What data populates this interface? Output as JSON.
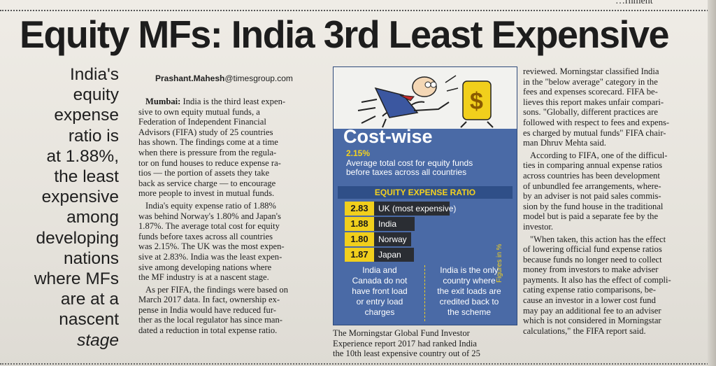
{
  "top_fragment": "…rnment",
  "headline": "Equity MFs: India 3rd Least Expensive",
  "pull_quote": [
    "India's",
    "equity",
    "expense",
    "ratio is",
    "at 1.88%,",
    "the least",
    "expensive",
    "among",
    "developing",
    "nations",
    "where MFs",
    "are at a",
    "nascent",
    "stage"
  ],
  "byline": {
    "name": "Prashant.Mahesh",
    "domain": "@timesgroup.com"
  },
  "column1": {
    "dateline": "Mumbai:",
    "paragraphs": [
      [
        "India is the third least expen-",
        "sive to own equity mutual funds, a",
        "Federation of Independent Financial",
        "Advisors (FIFA) study of 25 countries",
        "has shown. The findings come at a time",
        "when there is pressure from the regula-",
        "tor on fund houses to reduce expense ra-",
        "tios — the portion of assets they take",
        "back as service charge — to encourage",
        "more people to invest in mutual funds."
      ],
      [
        "India's equity expense ratio of 1.88%",
        "was behind Norway's 1.80% and Japan's",
        "1.87%. The average total cost for equity",
        "funds before taxes across all countries",
        "was 2.15%. The UK was the most expen-",
        "sive at 2.83%. India was the least expen-",
        "sive among developing nations where",
        "the MF industry is at a nascent stage."
      ],
      [
        "As per FIFA, the findings were based on",
        "March 2017 data. In fact, ownership ex-",
        "pense in India would have reduced fur-",
        "ther as the local regulator has since man-",
        "dated a reduction in total expense ratio."
      ]
    ]
  },
  "column2_text": [
    "The Morningstar Global Fund Investor",
    "Experience report 2017 had ranked India",
    "the 10th least expensive country out of 25"
  ],
  "column3": {
    "paragraphs": [
      [
        "reviewed. Morningstar classified India",
        "in the \"below average\" category in the",
        "fees and expenses scorecard. FIFA be-",
        "lieves this report makes unfair compari-",
        "sons. \"Globally, different practices are",
        "followed with respect to fees and expens-",
        "es charged by mutual funds\" FIFA chair-",
        "man Dhruv Mehta said."
      ],
      [
        "According to FIFA, one of the difficul-",
        "ties in comparing annual expense ratios",
        "across countries has been development",
        "of unbundled fee arrangements, where-",
        "by an adviser is not paid sales commis-",
        "sion by the fund house in the traditional",
        "model but is paid a separate fee by the",
        "investor."
      ],
      [
        "\"When taken, this action has the effect",
        "of lowering official fund expense ratios",
        "because funds no longer need to collect",
        "money from investors to make adviser",
        "payments. It also has the effect of compli-",
        "cating expense ratio comparisons, be-",
        "cause an investor in a lower cost fund",
        "may pay an additional fee to an adviser",
        "which is not considered in Morningstar",
        "calculations,\" the FIFA report said."
      ]
    ]
  },
  "infobox": {
    "title": "Cost-wise",
    "average_value": "2.15%",
    "average_desc": [
      "Average total cost for equity funds",
      "before taxes across all countries"
    ],
    "band_label": "EQUITY EXPENSE RATIO",
    "figures_note": "Figures in %",
    "rows": [
      {
        "value": "2.83",
        "label": "UK (most expensive)",
        "num": 2.83
      },
      {
        "value": "1.88",
        "label": "India",
        "num": 1.88
      },
      {
        "value": "1.80",
        "label": "Norway",
        "num": 1.8
      },
      {
        "value": "1.87",
        "label": "Japan",
        "num": 1.87
      }
    ],
    "note_left": [
      "India and",
      "Canada do not",
      "have front load",
      "or entry load",
      "charges"
    ],
    "note_right": [
      "India is the only",
      "country where",
      "the exit loads are",
      "credited back to",
      "the scheme"
    ],
    "colors": {
      "box_blue": "#4a6aa6",
      "band_blue": "#2f4f88",
      "accent_yellow": "#f1cf1c",
      "bar_dark": "#2a2d33"
    }
  }
}
